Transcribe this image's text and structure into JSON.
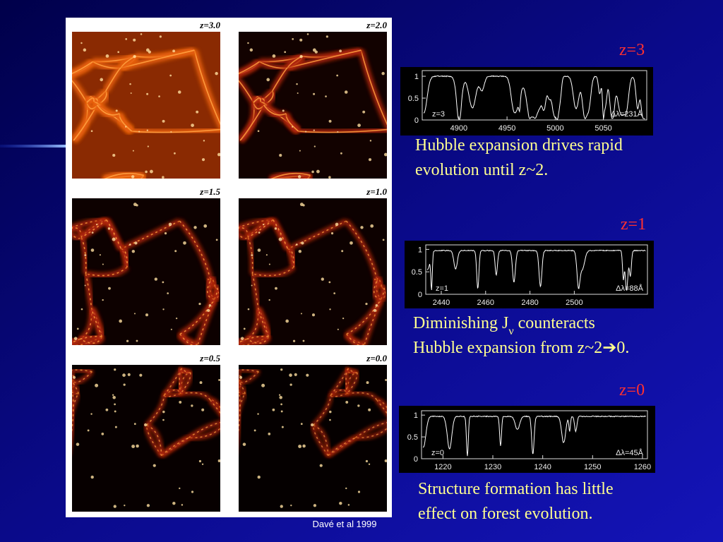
{
  "figure": {
    "panels": [
      {
        "label": "z=3.0"
      },
      {
        "label": "z=2.0"
      },
      {
        "label": "z=1.5"
      },
      {
        "label": "z=1.0"
      },
      {
        "label": "z=0.5"
      },
      {
        "label": "z=0.0"
      }
    ],
    "credit": "Davé et al 1999"
  },
  "spectra": [
    {
      "label": "z=3",
      "inner_label": "z=3",
      "width_label": "Δλ=231Å",
      "xlim": [
        4862,
        5095
      ],
      "ylim": [
        0,
        1.13
      ],
      "yticks": [
        0,
        0.5,
        1
      ],
      "xticks": [
        4900,
        4950,
        5000,
        5050
      ],
      "caption": [
        [
          "Hubble expansion drives rapid"
        ],
        [
          "evolution until z~2."
        ]
      ]
    },
    {
      "label": "z=1",
      "inner_label": "z=1",
      "width_label": "Δλ=88Å",
      "xlim": [
        2433,
        2533
      ],
      "ylim": [
        0,
        1.1
      ],
      "yticks": [
        0,
        0.5,
        1
      ],
      "xticks": [
        2440,
        2460,
        2480,
        2500
      ],
      "caption": [
        [
          "Diminishing J",
          {
            "text": "ν",
            "style": "subscript"
          },
          " counteracts"
        ],
        [
          "Hubble expansion from  z~2",
          "➔",
          "0."
        ]
      ]
    },
    {
      "label": "z=0",
      "inner_label": "z=0",
      "width_label": "Δλ=45Å",
      "xlim": [
        1215.7,
        1261
      ],
      "ylim": [
        0,
        1.1
      ],
      "yticks": [
        0,
        0.5,
        1
      ],
      "xticks": [
        1220,
        1230,
        1240,
        1250,
        1260
      ],
      "caption": [
        [
          "Structure formation has little"
        ],
        [
          "effect on forest evolution."
        ]
      ]
    }
  ]
}
